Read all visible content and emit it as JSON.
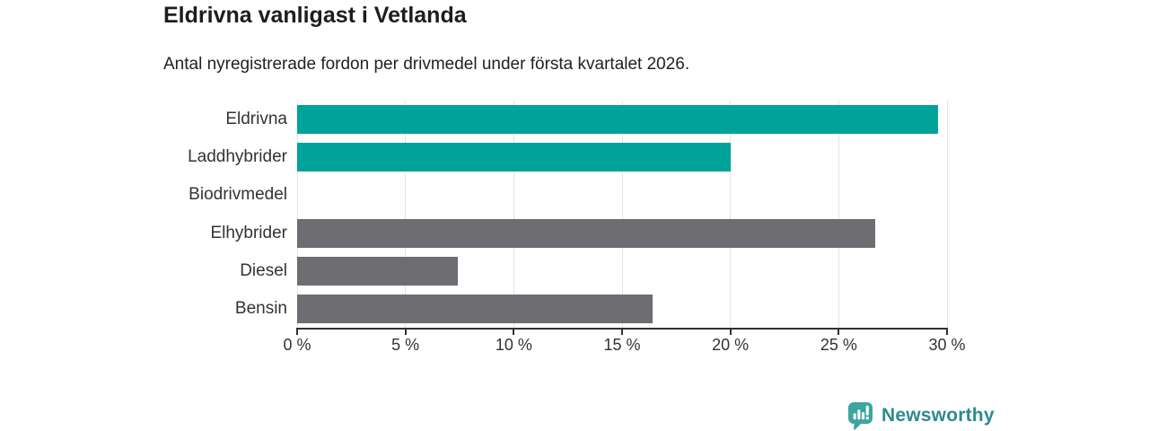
{
  "header": {
    "title": "Eldrivna vanligast i Vetlanda",
    "subtitle": "Antal nyregistrerade fordon per drivmedel under första kvartalet 2026."
  },
  "chart_data": {
    "type": "bar",
    "orientation": "horizontal",
    "title": "Eldrivna vanligast i Vetlanda",
    "subtitle": "Antal nyregistrerade fordon per drivmedel under första kvartalet 2026.",
    "categories": [
      "Eldrivna",
      "Laddhybrider",
      "Biodrivmedel",
      "Elhybrider",
      "Diesel",
      "Bensin"
    ],
    "values": [
      29.6,
      20.0,
      0,
      26.7,
      7.4,
      16.4
    ],
    "unit": "%",
    "bar_colors": [
      "#00a29a",
      "#00a29a",
      "#6d6d72",
      "#6d6d72",
      "#6d6d72",
      "#6d6d72"
    ],
    "xlim": [
      0,
      30
    ],
    "x_ticks": [
      0,
      5,
      10,
      15,
      20,
      25,
      30
    ],
    "x_tick_labels": [
      "0 %",
      "5 %",
      "10 %",
      "15 %",
      "20 %",
      "25 %",
      "30 %"
    ],
    "grid": true,
    "legend": false
  },
  "colors": {
    "accent_teal": "#00a29a",
    "bar_gray": "#6d6d72",
    "gridline": "#e4e4e4",
    "axis": "#303030",
    "brand_teal_text": "#2e8a8c",
    "brand_teal_icon": "#3da59e"
  },
  "footer": {
    "brand": "Newsworthy",
    "brand_icon": "newsworthy-bar-chart-bubble-icon"
  }
}
